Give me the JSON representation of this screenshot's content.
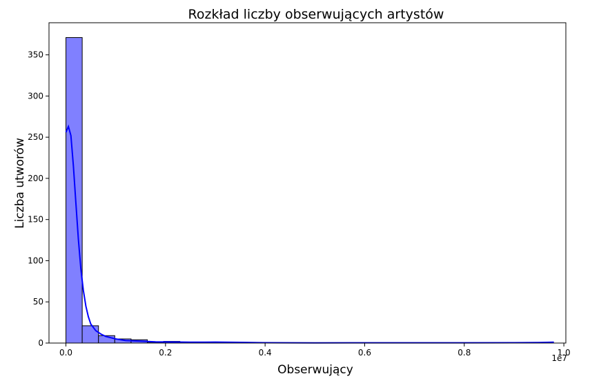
{
  "chart_data": {
    "type": "histogram",
    "title": "Rozkład liczby obserwujących artystów",
    "xlabel": "Obserwujący",
    "ylabel": "Liczba utworów",
    "x_offset_label": "1e7",
    "xlim": [
      -0.034,
      1.004
    ],
    "ylim": [
      0,
      389
    ],
    "xticks": [
      0.0,
      0.2,
      0.4,
      0.6,
      0.8,
      1.0
    ],
    "xtick_labels": [
      "0.0",
      "0.2",
      "0.4",
      "0.6",
      "0.8",
      "1.0"
    ],
    "yticks": [
      0,
      50,
      100,
      150,
      200,
      250,
      300,
      350
    ],
    "ytick_labels": [
      "0",
      "50",
      "100",
      "150",
      "200",
      "250",
      "300",
      "350"
    ],
    "bin_width": 0.0327,
    "bins": [
      {
        "start": 0.0,
        "count": 371
      },
      {
        "start": 0.0327,
        "count": 21
      },
      {
        "start": 0.0654,
        "count": 9
      },
      {
        "start": 0.0981,
        "count": 5
      },
      {
        "start": 0.1308,
        "count": 4
      },
      {
        "start": 0.1635,
        "count": 1
      },
      {
        "start": 0.1962,
        "count": 2
      },
      {
        "start": 0.2289,
        "count": 0
      },
      {
        "start": 0.2616,
        "count": 0
      },
      {
        "start": 0.2943,
        "count": 1
      }
    ],
    "kde": {
      "x": [
        0.0,
        0.005,
        0.01,
        0.015,
        0.02,
        0.025,
        0.03,
        0.035,
        0.04,
        0.045,
        0.05,
        0.06,
        0.07,
        0.08,
        0.1,
        0.12,
        0.15,
        0.18,
        0.2,
        0.22,
        0.25,
        0.28,
        0.3,
        0.35,
        0.4,
        0.5,
        0.6,
        0.7,
        0.8,
        0.9,
        0.95,
        0.98
      ],
      "y": [
        256,
        263,
        252,
        215,
        170,
        126,
        90,
        64,
        45,
        32,
        23,
        15,
        11,
        8,
        5,
        3,
        2.3,
        1.5,
        1.4,
        1.3,
        1.0,
        1.0,
        1.2,
        0.8,
        0.4,
        0.2,
        0.3,
        0.3,
        0.3,
        0.4,
        0.6,
        1.0
      ]
    },
    "bar_color": "#8080ff",
    "bar_edge_color": "#000000",
    "kde_color": "#0000ff"
  }
}
